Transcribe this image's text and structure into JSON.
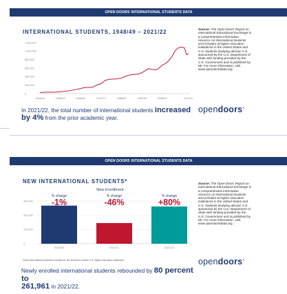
{
  "banner_1": {
    "brand": "OPEN DOORS",
    "rest": "INTERNATIONAL STUDENTS DATA"
  },
  "banner_2": {
    "brand": "OPEN DOORS",
    "rest": "INTERNATIONAL STUDENTS DATA"
  },
  "sidebar": {
    "source_label": "Source:",
    "source_title": "The Open Doors Report on International Educational Exchange",
    "source_text": "is a comprehensive information resource on international students and scholars at higher education institutions in the United States and U.S. students studying abroad. It is sponsored by the U.S. Department of State with funding provided by the U.S. Government and is published by IIE. For more information, visit www.opendoorsdata.org."
  },
  "logo": {
    "open": "open",
    "doors": "doors"
  },
  "narrative_1": {
    "pre": "In 2021/22, the total number of international students ",
    "emph": "increased by 4%",
    "post": " from the prior academic year."
  },
  "narrative_2": {
    "pre": "Newly enrolled international students rebounded by ",
    "emph1": "80 percent to",
    "emph2": "261,961",
    "post": " in 2021/22."
  },
  "footnote": "*New international students enrolled for the first time at their U.S. higher education institution.",
  "chart_data": [
    {
      "type": "line",
      "title": "INTERNATIONAL STUDENTS, 1948/49 – 2021/22",
      "x": [
        1948,
        1950,
        1952,
        1954,
        1956,
        1958,
        1960,
        1962,
        1964,
        1966,
        1968,
        1970,
        1972,
        1974,
        1976,
        1978,
        1980,
        1982,
        1984,
        1986,
        1988,
        1990,
        1992,
        1994,
        1996,
        1998,
        2000,
        2001,
        2002,
        2003,
        2004,
        2005,
        2006,
        2007,
        2008,
        2009,
        2010,
        2011,
        2012,
        2013,
        2014,
        2015,
        2016,
        2017,
        2018,
        2019,
        2020,
        2021
      ],
      "y": [
        25464,
        29813,
        33675,
        34232,
        36494,
        47245,
        53107,
        64705,
        82045,
        100262,
        121362,
        144708,
        146097,
        154580,
        203070,
        235509,
        311882,
        336985,
        342113,
        349609,
        366354,
        407529,
        438618,
        452653,
        457984,
        490933,
        547867,
        582996,
        586323,
        572509,
        565039,
        564766,
        582984,
        623805,
        671616,
        690923,
        723277,
        764495,
        819644,
        886052,
        974926,
        1043839,
        1078822,
        1094792,
        1095299,
        1075496,
        914095,
        948519
      ],
      "x_tick_labels": [
        "1948/49",
        "1958/59",
        "1968/69",
        "1978/79",
        "1988/89",
        "1998/99",
        "2008/09",
        "2021/22"
      ],
      "x_tick_years": [
        1948,
        1958,
        1968,
        1978,
        1988,
        1998,
        2008,
        2021
      ],
      "y_ticks": [
        0,
        200000,
        400000,
        600000,
        800000,
        1000000,
        1200000
      ],
      "y_tick_labels": [
        "0",
        "200,000",
        "400,000",
        "600,000",
        "800,000",
        "1,000,000",
        "1,200,000"
      ],
      "ylim": [
        0,
        1200000
      ],
      "grid": false,
      "line_color": "#c0172f"
    },
    {
      "type": "bar",
      "title": "NEW INTERNATIONAL STUDENTS*",
      "subtitle": "New Enrollment",
      "categories": [
        "2019/20",
        "2020/21",
        "2021/22"
      ],
      "values": [
        267712,
        145528,
        261961
      ],
      "colors": [
        "#1e3a70",
        "#c0172f",
        "#009b9a"
      ],
      "pct_change_label": "% change",
      "pct_changes": [
        "-1%",
        "-46%",
        "+80%"
      ],
      "y_ticks": [
        0,
        100000,
        200000,
        300000
      ],
      "y_tick_labels": [
        "0",
        "100,000",
        "200,000",
        "300,000"
      ],
      "ylim": [
        0,
        300000
      ],
      "grid": true
    }
  ]
}
